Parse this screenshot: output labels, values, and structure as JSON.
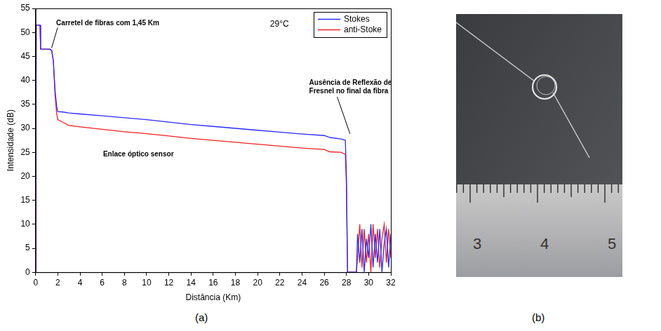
{
  "chart_data": {
    "type": "line",
    "panel_label": "(a)",
    "x_label": "Distância (Km)",
    "y_label": "Intensidade (dB)",
    "annotations": [
      "Carretel de fibras com 1,45 Km",
      "29°C",
      "Ausência de Reflexão de Fresnel no final da fibra",
      "Enlace óptico sensor"
    ],
    "x": [
      0,
      0.05,
      0.4,
      0.45,
      1.3,
      1.45,
      1.6,
      1.75,
      1.9,
      2.0,
      2.5,
      3,
      4,
      6,
      8,
      10,
      12,
      14,
      16,
      18,
      20,
      22,
      24,
      26,
      26.5,
      27.5,
      27.9,
      28.0,
      28.05,
      28.1,
      28.9,
      29.0,
      29.2,
      29.4,
      29.6,
      29.8,
      30.0,
      30.2,
      30.4,
      30.6,
      30.8,
      31.0,
      31.2,
      31.4,
      31.6,
      31.8,
      32.0
    ],
    "series": [
      {
        "name": "Stokes",
        "color": "#2b2bff",
        "values": [
          0,
          51.5,
          51.5,
          46.5,
          46.5,
          46.2,
          44,
          38,
          34.5,
          33.5,
          33.4,
          33.2,
          33,
          32.6,
          32.2,
          31.8,
          31.3,
          30.8,
          30.4,
          30,
          29.6,
          29.2,
          28.8,
          28.5,
          28.1,
          27.8,
          27.5,
          20,
          10,
          0,
          0,
          8,
          2,
          9,
          0,
          7,
          3,
          10,
          1,
          8,
          2,
          9,
          0,
          6,
          9,
          1,
          8
        ]
      },
      {
        "name": "anti-Stoke",
        "color": "#ee2222",
        "values": [
          0,
          51.5,
          51.5,
          46.5,
          46.5,
          46.2,
          44,
          37,
          33,
          31.8,
          31.2,
          30.6,
          30.3,
          29.8,
          29.3,
          28.9,
          28.4,
          27.9,
          27.5,
          27.1,
          26.7,
          26.3,
          25.9,
          25.6,
          25.1,
          25,
          24.6,
          18,
          8,
          0,
          0,
          3,
          10,
          1,
          9,
          2,
          8,
          0,
          10,
          3,
          9,
          1,
          7,
          10,
          2,
          9,
          3
        ]
      }
    ],
    "xlim": [
      0,
      32
    ],
    "xticks": [
      0,
      2,
      4,
      6,
      8,
      10,
      12,
      14,
      16,
      18,
      20,
      22,
      24,
      26,
      28,
      30,
      32
    ],
    "ylim": [
      0,
      55
    ],
    "yticks": [
      0,
      5,
      10,
      15,
      20,
      25,
      30,
      35,
      40,
      45,
      50,
      55
    ],
    "grid": false,
    "legend": "upper right"
  },
  "photo": {
    "panel_label": "(b)",
    "ruler_labels": [
      3,
      4,
      5
    ]
  }
}
